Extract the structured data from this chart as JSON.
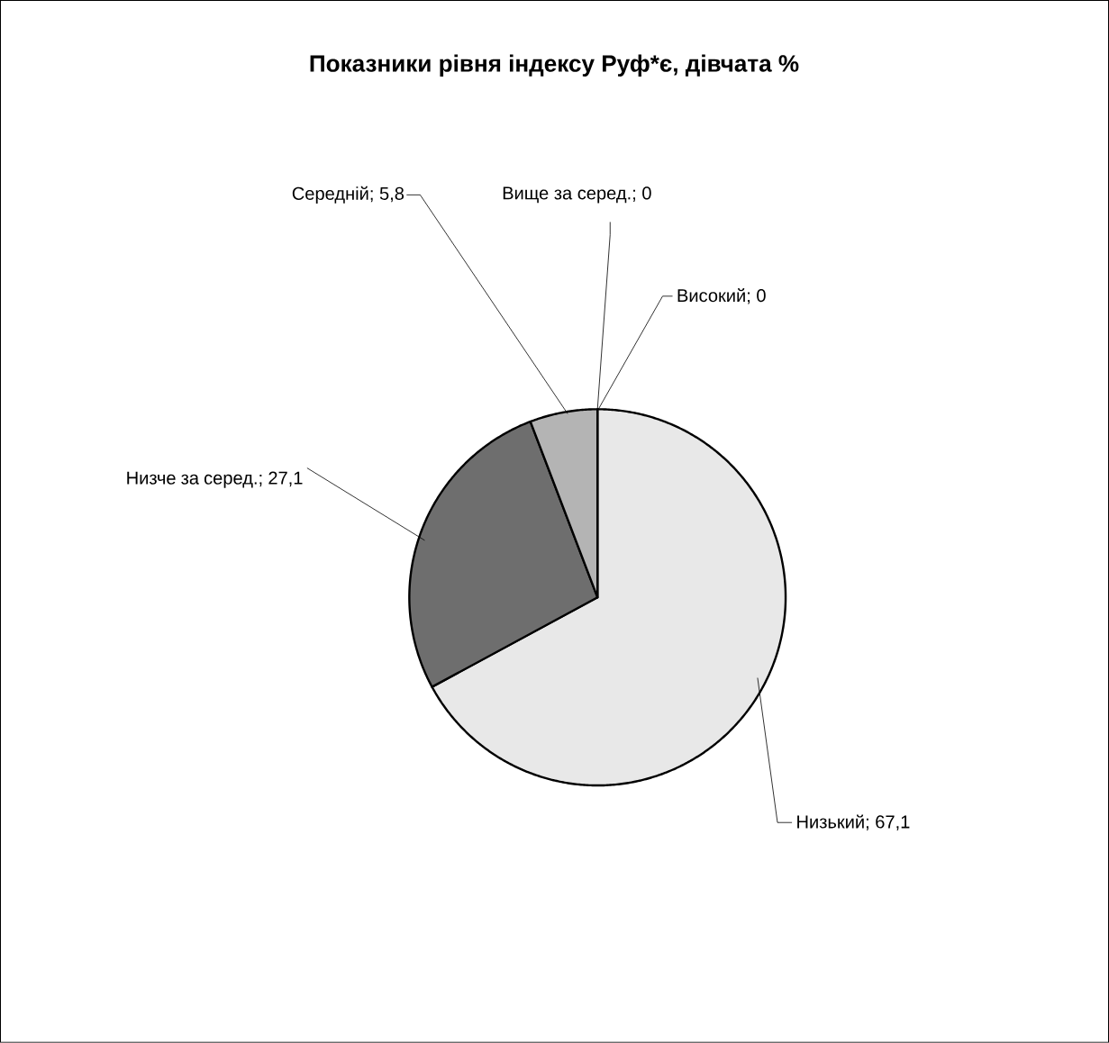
{
  "chart_data": {
    "type": "pie",
    "title": "Показники рівня індексу Руф*є, дівчата %",
    "categories": [
      "Низький",
      "Низче за серед.",
      "Середній",
      "Вище за серед.",
      "Високий"
    ],
    "values": [
      67.1,
      27.1,
      5.8,
      0,
      0
    ],
    "value_labels": [
      "; 67,1",
      "; 27,1",
      "; 5,8",
      "; 0",
      "; 0"
    ],
    "colors": [
      "#e8e8e8",
      "#6e6e6e",
      "#b4b4b4",
      "#d0d0d0",
      "#909090"
    ]
  }
}
